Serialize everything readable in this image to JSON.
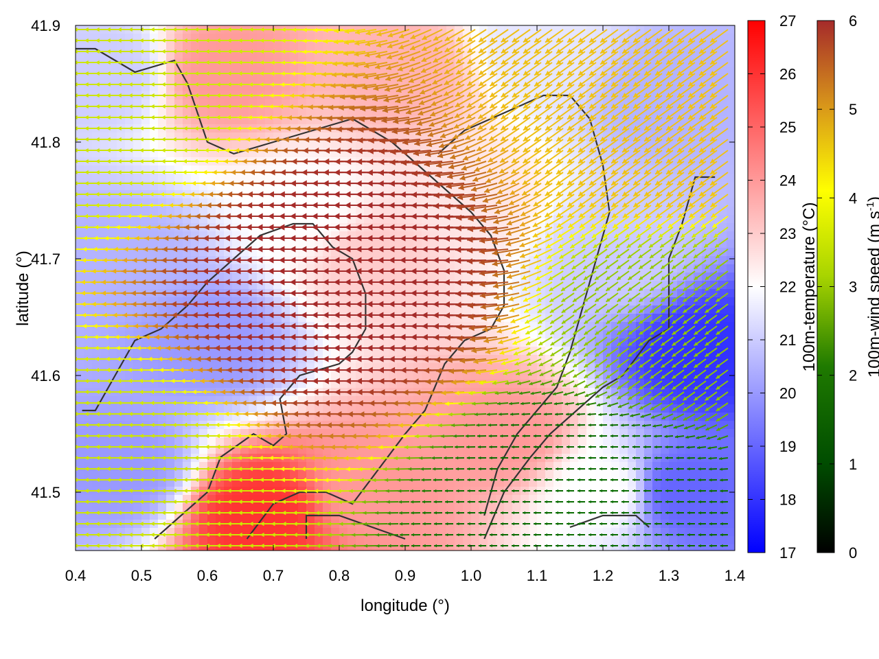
{
  "chart_data": {
    "type": "heatmap",
    "title": "",
    "xlabel": "longitude (°)",
    "ylabel": "latitude (°)",
    "xlim": [
      0.4,
      1.4
    ],
    "ylim": [
      41.45,
      41.9
    ],
    "x_ticks": [
      {
        "value": 0.4,
        "label": "0.4"
      },
      {
        "value": 0.5,
        "label": "0.5"
      },
      {
        "value": 0.6,
        "label": "0.6"
      },
      {
        "value": 0.7,
        "label": "0.7"
      },
      {
        "value": 0.8,
        "label": "0.8"
      },
      {
        "value": 0.9,
        "label": "0.9"
      },
      {
        "value": 1.0,
        "label": "1.0"
      },
      {
        "value": 1.1,
        "label": "1.1"
      },
      {
        "value": 1.2,
        "label": "1.2"
      },
      {
        "value": 1.3,
        "label": "1.3"
      },
      {
        "value": 1.4,
        "label": "1.4"
      }
    ],
    "y_ticks": [
      {
        "value": 41.5,
        "label": "41.5"
      },
      {
        "value": 41.6,
        "label": "41.6"
      },
      {
        "value": 41.7,
        "label": "41.7"
      },
      {
        "value": 41.8,
        "label": "41.8"
      },
      {
        "value": 41.9,
        "label": "41.9"
      }
    ],
    "temperature_colorbar": {
      "label": "100m-temperature (°C)",
      "range": [
        17,
        27
      ],
      "ticks": [
        "17",
        "18",
        "19",
        "20",
        "21",
        "22",
        "23",
        "24",
        "25",
        "26",
        "27"
      ],
      "colors": [
        "#0000ff",
        "#ffffff",
        "#ff0000"
      ]
    },
    "wind_colorbar": {
      "label_main": "100m-wind speed (m s",
      "label_sup": "-1",
      "label_end": ")",
      "range": [
        0,
        6
      ],
      "ticks": [
        "0",
        "1",
        "2",
        "3",
        "4",
        "5",
        "6"
      ],
      "colors": [
        "#000000",
        "#006400",
        "#2e8b00",
        "#9acd00",
        "#ffff00",
        "#e8a41c",
        "#c06a1e",
        "#a52a2a"
      ]
    },
    "temperature_field": [
      {
        "lon": 0.45,
        "lat": 41.86,
        "t": 21.0
      },
      {
        "lon": 0.62,
        "lat": 41.86,
        "t": 24.0
      },
      {
        "lon": 0.9,
        "lat": 41.86,
        "t": 23.5
      },
      {
        "lon": 1.1,
        "lat": 41.88,
        "t": 21.5
      },
      {
        "lon": 1.3,
        "lat": 41.84,
        "t": 20.5
      },
      {
        "lon": 0.47,
        "lat": 41.7,
        "t": 20.5
      },
      {
        "lon": 0.6,
        "lat": 41.63,
        "t": 20.0
      },
      {
        "lon": 0.75,
        "lat": 41.74,
        "t": 22.0
      },
      {
        "lon": 0.85,
        "lat": 41.7,
        "t": 23.0
      },
      {
        "lon": 1.0,
        "lat": 41.75,
        "t": 22.5
      },
      {
        "lon": 1.22,
        "lat": 41.7,
        "t": 21.0
      },
      {
        "lon": 1.35,
        "lat": 41.62,
        "t": 18.0
      },
      {
        "lon": 1.32,
        "lat": 41.5,
        "t": 19.0
      },
      {
        "lon": 0.68,
        "lat": 41.48,
        "t": 26.0
      },
      {
        "lon": 0.85,
        "lat": 41.5,
        "t": 24.0
      },
      {
        "lon": 1.05,
        "lat": 41.55,
        "t": 24.0
      },
      {
        "lon": 1.2,
        "lat": 41.5,
        "t": 22.0
      },
      {
        "lon": 0.47,
        "lat": 41.52,
        "t": 20.0
      }
    ],
    "wind_field_summary": [
      {
        "region": "central",
        "speed_ms": 6,
        "direction": "from east"
      },
      {
        "region": "south-east",
        "speed_ms": 1,
        "direction": "from east"
      },
      {
        "region": "east",
        "speed_ms": 2.5,
        "direction": "from north-east"
      },
      {
        "region": "north-east",
        "speed_ms": 4,
        "direction": "from north-east"
      },
      {
        "region": "north-west",
        "speed_ms": 3,
        "direction": "from east"
      },
      {
        "region": "south-west",
        "speed_ms": 3,
        "direction": "from east"
      }
    ],
    "contour_lines_lonlat": [
      [
        [
          0.41,
          41.57
        ],
        [
          0.43,
          41.57
        ],
        [
          0.46,
          41.6
        ],
        [
          0.49,
          41.63
        ],
        [
          0.53,
          41.64
        ],
        [
          0.57,
          41.66
        ],
        [
          0.6,
          41.68
        ],
        [
          0.64,
          41.7
        ],
        [
          0.68,
          41.72
        ],
        [
          0.73,
          41.73
        ],
        [
          0.76,
          41.73
        ],
        [
          0.79,
          41.71
        ],
        [
          0.82,
          41.7
        ],
        [
          0.84,
          41.67
        ],
        [
          0.84,
          41.64
        ],
        [
          0.82,
          41.62
        ],
        [
          0.8,
          41.61
        ],
        [
          0.74,
          41.6
        ],
        [
          0.71,
          41.58
        ],
        [
          0.72,
          41.55
        ],
        [
          0.7,
          41.54
        ],
        [
          0.67,
          41.55
        ],
        [
          0.62,
          41.53
        ],
        [
          0.6,
          41.5
        ],
        [
          0.56,
          41.48
        ],
        [
          0.52,
          41.46
        ]
      ],
      [
        [
          0.66,
          41.46
        ],
        [
          0.7,
          41.49
        ],
        [
          0.74,
          41.5
        ],
        [
          0.78,
          41.5
        ],
        [
          0.82,
          41.49
        ],
        [
          0.86,
          41.52
        ],
        [
          0.9,
          41.55
        ],
        [
          0.93,
          41.57
        ],
        [
          0.96,
          41.61
        ],
        [
          0.99,
          41.63
        ],
        [
          1.03,
          41.64
        ],
        [
          1.05,
          41.66
        ],
        [
          1.05,
          41.69
        ],
        [
          1.03,
          41.72
        ],
        [
          1.0,
          41.74
        ],
        [
          0.96,
          41.76
        ],
        [
          0.92,
          41.78
        ],
        [
          0.88,
          41.8
        ],
        [
          0.82,
          41.82
        ],
        [
          0.76,
          41.81
        ],
        [
          0.7,
          41.8
        ],
        [
          0.64,
          41.79
        ],
        [
          0.6,
          41.8
        ],
        [
          0.57,
          41.85
        ],
        [
          0.55,
          41.87
        ],
        [
          0.49,
          41.86
        ],
        [
          0.43,
          41.88
        ],
        [
          0.4,
          41.88
        ]
      ],
      [
        [
          0.75,
          41.46
        ],
        [
          0.75,
          41.48
        ],
        [
          0.8,
          41.48
        ],
        [
          0.85,
          41.47
        ],
        [
          0.9,
          41.46
        ]
      ],
      [
        [
          1.02,
          41.46
        ],
        [
          1.05,
          41.5
        ],
        [
          1.09,
          41.53
        ],
        [
          1.12,
          41.55
        ],
        [
          1.16,
          41.57
        ],
        [
          1.2,
          41.59
        ],
        [
          1.23,
          41.6
        ],
        [
          1.27,
          41.63
        ],
        [
          1.3,
          41.64
        ],
        [
          1.3,
          41.7
        ],
        [
          1.32,
          41.73
        ],
        [
          1.34,
          41.77
        ],
        [
          1.37,
          41.77
        ]
      ],
      [
        [
          1.15,
          41.47
        ],
        [
          1.2,
          41.48
        ],
        [
          1.25,
          41.48
        ],
        [
          1.27,
          41.47
        ]
      ],
      [
        [
          0.95,
          41.79
        ],
        [
          0.99,
          41.81
        ],
        [
          1.03,
          41.82
        ],
        [
          1.07,
          41.83
        ],
        [
          1.11,
          41.84
        ],
        [
          1.15,
          41.84
        ],
        [
          1.18,
          41.82
        ],
        [
          1.2,
          41.78
        ],
        [
          1.21,
          41.74
        ],
        [
          1.19,
          41.7
        ],
        [
          1.17,
          41.66
        ],
        [
          1.15,
          41.62
        ],
        [
          1.13,
          41.59
        ],
        [
          1.1,
          41.57
        ],
        [
          1.07,
          41.55
        ],
        [
          1.04,
          41.52
        ],
        [
          1.02,
          41.48
        ]
      ]
    ]
  }
}
